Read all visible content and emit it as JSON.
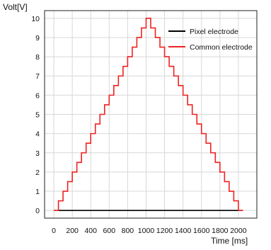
{
  "chart_data": {
    "type": "line",
    "title": "",
    "ylabel": "Volt[V]",
    "xlabel": "Time [ms]",
    "xlim": [
      -100,
      2200
    ],
    "ylim": [
      -0.4,
      10.4
    ],
    "x_ticks": [
      0,
      200,
      400,
      600,
      800,
      1000,
      1200,
      1400,
      1600,
      1800,
      2000
    ],
    "y_ticks": [
      0,
      1,
      2,
      3,
      4,
      5,
      6,
      7,
      8,
      9,
      10
    ],
    "grid": true,
    "legend_position": "top-right",
    "series": [
      {
        "name": "Pixel electrode",
        "color": "#000000",
        "x": [
          0,
          2050
        ],
        "y": [
          0,
          0
        ]
      },
      {
        "name": "Common electrode",
        "color": "#ee2222",
        "step": "post",
        "x": [
          0,
          50,
          100,
          150,
          200,
          250,
          300,
          350,
          400,
          450,
          500,
          550,
          600,
          650,
          700,
          750,
          800,
          850,
          900,
          950,
          1000,
          1050,
          1100,
          1150,
          1200,
          1250,
          1300,
          1350,
          1400,
          1450,
          1500,
          1550,
          1600,
          1650,
          1700,
          1750,
          1800,
          1850,
          1900,
          1950,
          2000,
          2050
        ],
        "y": [
          0,
          0.5,
          1,
          1.5,
          2,
          2.5,
          3,
          3.5,
          4,
          4.5,
          5,
          5.5,
          6,
          6.5,
          7,
          7.5,
          8,
          8.5,
          9,
          9.5,
          10,
          9.5,
          9,
          8.5,
          8,
          7.5,
          7,
          6.5,
          6,
          5.5,
          5,
          4.5,
          4,
          3.5,
          3,
          2.5,
          2,
          1.5,
          1,
          0.5,
          0,
          0
        ]
      }
    ]
  }
}
